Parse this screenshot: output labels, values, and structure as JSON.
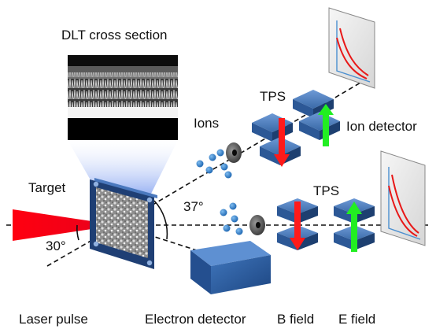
{
  "labels": {
    "dlt_cross_section": "DLT cross section",
    "target": "Target",
    "ions": "Ions",
    "tps_top": "TPS",
    "ion_detector": "Ion detector",
    "angle_37": "37°",
    "tps_bottom": "TPS",
    "angle_30": "30°",
    "laser_pulse": "Laser pulse",
    "electron_detector": "Electron detector",
    "b_field": "B field",
    "e_field": "E field"
  },
  "colors": {
    "laser": "#e8001c",
    "b_field_arrow": "#ff1a1a",
    "e_field_arrow": "#22ee22",
    "magnet": "#3a6aa8",
    "ion_dots": "#2f80c8",
    "detector_trace": "#e81818",
    "detector_axes": "#4a8fd0",
    "electron_detector": "#2c5d9c"
  },
  "icons": [
    "laser-beam-icon",
    "target-foil-icon",
    "pinhole-icon",
    "magnet-icon",
    "field-arrow-icon",
    "detector-screen-icon"
  ]
}
